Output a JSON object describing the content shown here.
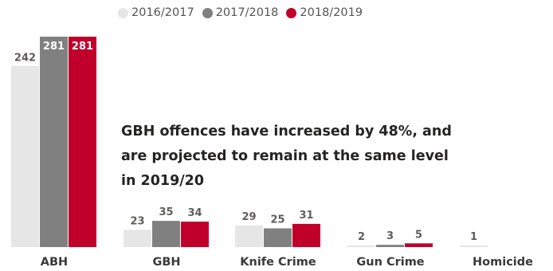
{
  "chart_data": {
    "type": "bar",
    "title": "",
    "categories": [
      "ABH",
      "GBH",
      "Knife Crime",
      "Gun Crime",
      "Homicide"
    ],
    "series": [
      {
        "name": "2016/2017",
        "color": "#e6e6e6",
        "values": [
          242,
          23,
          29,
          2,
          1
        ]
      },
      {
        "name": "2017/2018",
        "color": "#808080",
        "values": [
          281,
          35,
          25,
          3,
          null
        ]
      },
      {
        "name": "2018/2019",
        "color": "#c0002b",
        "values": [
          281,
          34,
          31,
          5,
          null
        ]
      }
    ],
    "data_labels": [
      [
        "242",
        "23",
        "29",
        "2",
        "1"
      ],
      [
        "281",
        "35",
        "25",
        "3",
        ""
      ],
      [
        "281",
        "34",
        "31",
        "5",
        ""
      ]
    ],
    "ylim": [
      0,
      281
    ],
    "legend_position": "top-center",
    "grid": false
  },
  "annotation": "GBH offences have increased by 48%, and are projected to remain at the same level in 2019/20"
}
